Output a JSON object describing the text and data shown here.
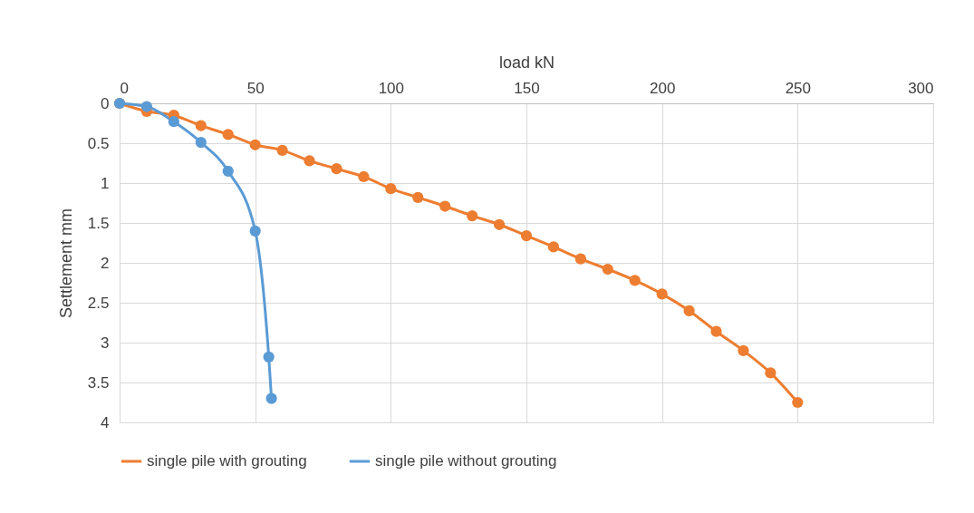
{
  "chart_data": {
    "type": "line",
    "xlabel": "load kN",
    "ylabel": "Settlement mm",
    "xlim": [
      0,
      300
    ],
    "xticks": [
      0,
      50,
      100,
      150,
      200,
      250,
      300
    ],
    "ylim": [
      4,
      0
    ],
    "yticks": [
      0,
      0.5,
      1,
      1.5,
      2,
      2.5,
      3,
      3.5,
      4
    ],
    "grid": true,
    "legend": "bottom",
    "marker": "circle",
    "line_style": "solid",
    "series": [
      {
        "name": "single pile with grouting",
        "color": "#ed7d31",
        "x": [
          0,
          10,
          20,
          30,
          40,
          50,
          60,
          70,
          80,
          90,
          100,
          110,
          120,
          130,
          140,
          150,
          160,
          170,
          180,
          190,
          200,
          210,
          220,
          230,
          240,
          250
        ],
        "values": [
          0,
          0.1,
          0.15,
          0.28,
          0.39,
          0.52,
          0.59,
          0.72,
          0.82,
          0.92,
          1.07,
          1.18,
          1.29,
          1.41,
          1.52,
          1.66,
          1.8,
          1.95,
          2.08,
          2.22,
          2.39,
          2.6,
          2.86,
          3.1,
          3.38,
          3.75
        ]
      },
      {
        "name": "single pile without grouting",
        "color": "#5b9bd5",
        "x": [
          0,
          10,
          20,
          30,
          40,
          50,
          55,
          56
        ],
        "values": [
          0,
          0.04,
          0.23,
          0.49,
          0.85,
          1.6,
          3.18,
          3.7
        ]
      }
    ]
  }
}
